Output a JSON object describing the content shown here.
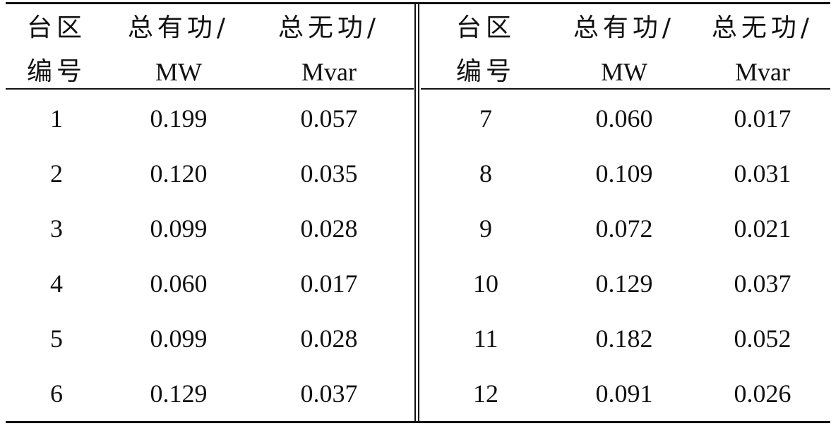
{
  "table": {
    "left": {
      "headers": [
        {
          "line1": "台区",
          "line2": "编号"
        },
        {
          "line1": "总有功/",
          "line2": "MW"
        },
        {
          "line1": "总无功/",
          "line2": "Mvar"
        }
      ],
      "rows": [
        [
          "1",
          "0.199",
          "0.057"
        ],
        [
          "2",
          "0.120",
          "0.035"
        ],
        [
          "3",
          "0.099",
          "0.028"
        ],
        [
          "4",
          "0.060",
          "0.017"
        ],
        [
          "5",
          "0.099",
          "0.028"
        ],
        [
          "6",
          "0.129",
          "0.037"
        ]
      ]
    },
    "right": {
      "headers": [
        {
          "line1": "台区",
          "line2": "编号"
        },
        {
          "line1": "总有功/",
          "line2": "MW"
        },
        {
          "line1": "总无功/",
          "line2": "Mvar"
        }
      ],
      "rows": [
        [
          "7",
          "0.060",
          "0.017"
        ],
        [
          "8",
          "0.109",
          "0.031"
        ],
        [
          "9",
          "0.072",
          "0.021"
        ],
        [
          "10",
          "0.129",
          "0.037"
        ],
        [
          "11",
          "0.182",
          "0.052"
        ],
        [
          "12",
          "0.091",
          "0.026"
        ]
      ]
    }
  }
}
